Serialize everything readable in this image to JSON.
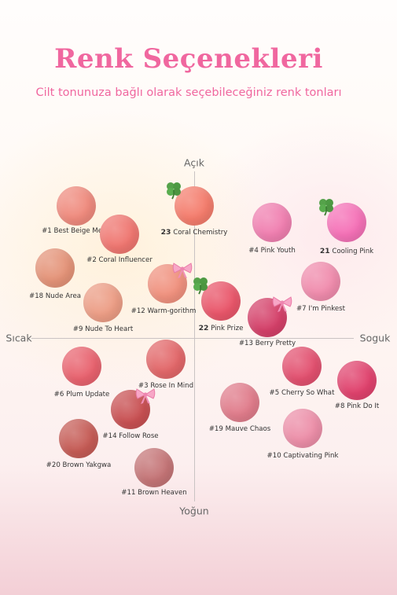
{
  "header": {
    "title": "Renk Seçenekleri",
    "subtitle": "Cilt tonunuza bağlı olarak seçebileceğiniz renk tonları"
  },
  "axes": {
    "top": "Açık",
    "bottom": "Yoğun",
    "left": "Sıcak",
    "right": "Soguk"
  },
  "shades": [
    {
      "id": "s1",
      "number": "#1",
      "name": "Best Beige Menu",
      "color": "#ef8a7d",
      "badge": "none"
    },
    {
      "id": "s23",
      "number": "23",
      "name": "Coral Chemistry",
      "color": "#f47c6c",
      "badge": "clover"
    },
    {
      "id": "s4",
      "number": "#4",
      "name": "Pink Youth",
      "color": "#f07fb0",
      "badge": "none"
    },
    {
      "id": "s21",
      "number": "21",
      "name": "Cooling Pink",
      "color": "#f571b7",
      "badge": "clover"
    },
    {
      "id": "s2",
      "number": "#2",
      "name": "Coral Influencer",
      "color": "#ef7670",
      "badge": "none"
    },
    {
      "id": "s18",
      "number": "#18",
      "name": "Nude Area",
      "color": "#e49378",
      "badge": "none"
    },
    {
      "id": "s12",
      "number": "#12",
      "name": "Warm-gorithm",
      "color": "#f0917e",
      "badge": "ribbon"
    },
    {
      "id": "s22",
      "number": "22",
      "name": "Pink Prize",
      "color": "#e9566a",
      "badge": "clover"
    },
    {
      "id": "s7",
      "number": "#7",
      "name": "I'm Pinkest",
      "color": "#f08cad",
      "badge": "none"
    },
    {
      "id": "s9",
      "number": "#9",
      "name": "Nude To Heart",
      "color": "#ec9d85",
      "badge": "none"
    },
    {
      "id": "s13",
      "number": "#13",
      "name": "Berry Pretty",
      "color": "#d44069",
      "badge": "ribbon"
    },
    {
      "id": "s3",
      "number": "#3",
      "name": "Rose In Mind",
      "color": "#e26769",
      "badge": "none"
    },
    {
      "id": "s6",
      "number": "#6",
      "name": "Plum Update",
      "color": "#e8626e",
      "badge": "none"
    },
    {
      "id": "s5",
      "number": "#5",
      "name": "Cherry So What",
      "color": "#e2506f",
      "badge": "none"
    },
    {
      "id": "s8",
      "number": "#8",
      "name": "Pink Do It",
      "color": "#e0426d",
      "badge": "none"
    },
    {
      "id": "s14",
      "number": "#14",
      "name": "Follow Rose",
      "color": "#c85052",
      "badge": "ribbon"
    },
    {
      "id": "s19",
      "number": "#19",
      "name": "Mauve Chaos",
      "color": "#e07c8b",
      "badge": "none"
    },
    {
      "id": "s10",
      "number": "#10",
      "name": "Captivating Pink",
      "color": "#ec8ea8",
      "badge": "none"
    },
    {
      "id": "s20",
      "number": "#20",
      "name": "Brown Yakgwa",
      "color": "#c55b55",
      "badge": "none"
    },
    {
      "id": "s11",
      "number": "#11",
      "name": "Brown Heaven",
      "color": "#c47476",
      "badge": "none"
    }
  ]
}
